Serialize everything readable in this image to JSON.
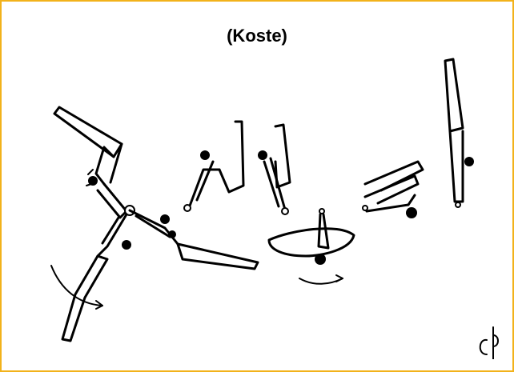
{
  "title": "(Koste)",
  "signature": "Cþ",
  "colors": {
    "border": "#f2b21b",
    "ink": "#000000",
    "background": "#ffffff"
  }
}
